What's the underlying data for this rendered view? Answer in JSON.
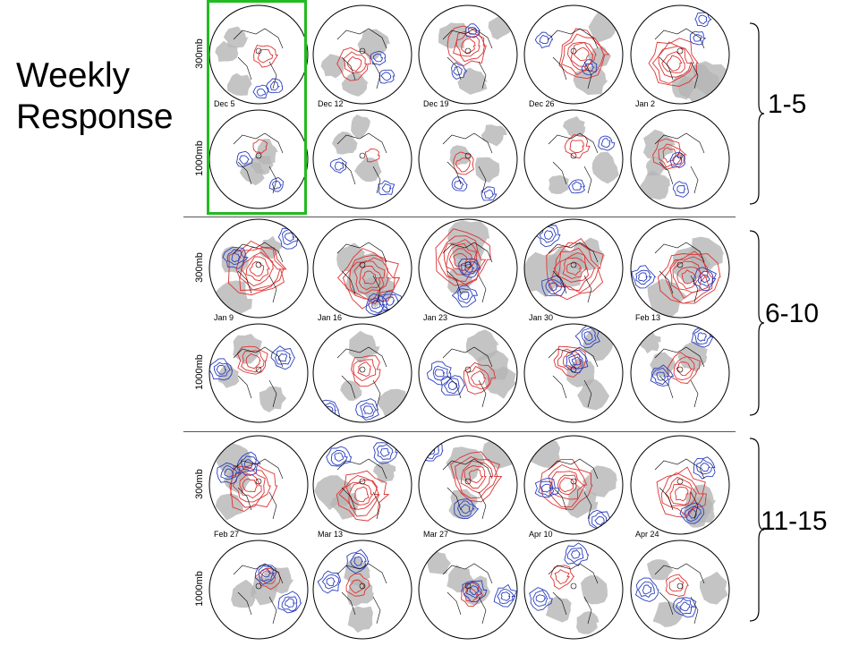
{
  "title": "Weekly\nResponse",
  "levels": [
    "300mb",
    "1000mb"
  ],
  "groups": [
    {
      "label": "1-5",
      "dates": [
        "Dec 5",
        "Dec 12",
        "Dec 19",
        "Dec 26",
        "Jan 2"
      ]
    },
    {
      "label": "6-10",
      "dates": [
        "Jan 9",
        "Jan 16",
        "Jan 23",
        "Jan 30",
        "Feb 13"
      ]
    },
    {
      "label": "11-15",
      "dates": [
        "Feb 27",
        "Mar 13",
        "Mar 27",
        "Apr 10",
        "Apr 24"
      ]
    }
  ],
  "colors": {
    "positive": "#d33",
    "negative": "#2b3fbf",
    "shade": "#b5b5b5",
    "highlight": "#22bb22"
  },
  "highlighted_column": "Dec 5"
}
